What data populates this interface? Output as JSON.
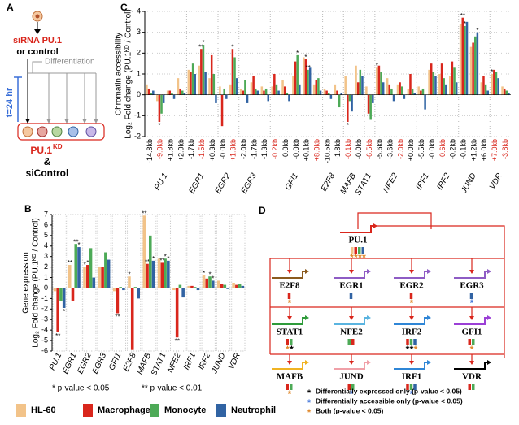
{
  "chart_data": [
    {
      "type": "bar",
      "panel": "C",
      "ylabel": [
        "Chromatin accessibility",
        "Log₂ Fold change (PU.1ᴷᴰ / Control)"
      ],
      "categories": [
        "-14.8kb",
        "-9.0kb",
        "+1.8kb",
        "+2.0kb",
        "-1.7kb",
        "-1.5kb",
        "+0.3kb",
        "-0.0kb",
        "+1.3kb",
        "-2.0kb",
        "-1.7kb",
        "-1.3kb",
        "-0.2kb",
        "-0.0kb",
        "-0.0kb",
        "+0.1kb",
        "+8.0kb",
        "-10.5kb",
        "-1.8kb",
        "-0.1kb",
        "-0.0kb",
        "-6.5kb",
        "-5.6kb",
        "-3.6kb",
        "-2.0kb",
        "+0.0kb",
        "-5.5kb",
        "-0.0kb",
        "-0.6kb",
        "-0.2kb",
        "-0.1kb",
        "+1.2kb",
        "+6.0kb",
        "+7.0kb",
        "-3.8kb"
      ],
      "category_label_colors": [
        "#000000",
        "#d9261c",
        "#000000",
        "#000000",
        "#000000",
        "#d9261c",
        "#000000",
        "#000000",
        "#d9261c",
        "#000000",
        "#000000",
        "#000000",
        "#d9261c",
        "#000000",
        "#000000",
        "#000000",
        "#d9261c",
        "#000000",
        "#000000",
        "#d9261c",
        "#000000",
        "#d9261c",
        "#000000",
        "#000000",
        "#d9261c",
        "#000000",
        "#000000",
        "#000000",
        "#d9261c",
        "#000000",
        "#000000",
        "#000000",
        "#000000",
        "#d9261c",
        "#d9261c"
      ],
      "category_groups": [
        "PU.1",
        "PU.1",
        "PU.1",
        "PU.1",
        "EGR1",
        "EGR1",
        "EGR1",
        "EGR2",
        "EGR2",
        "EGR3",
        "EGR3",
        "EGR3",
        "GFI1",
        "GFI1",
        "GFI1",
        "GFI1",
        "GFI1",
        "E2F8",
        "E2F8",
        "MAFB",
        "MAFB",
        "STAT1",
        "NFE2",
        "NFE2",
        "NFE2",
        "NFE2",
        "IRF1",
        "IRF1",
        "IRF2",
        "IRF2",
        "JUND",
        "JUND",
        "JUND",
        "VDR",
        "VDR"
      ],
      "series": [
        {
          "name": "HL-60",
          "color": "#f2c389",
          "values": [
            0.5,
            -0.3,
            0.2,
            0.8,
            1.2,
            1.4,
            0.8,
            0.4,
            0.5,
            0.3,
            0.6,
            0.4,
            0.4,
            0.7,
            0.9,
            1.8,
            0.5,
            0.3,
            0.5,
            0.9,
            1.4,
            0.4,
            1.3,
            0.8,
            0.5,
            0.3,
            0.4,
            1.2,
            1.0,
            0.9,
            3.4,
            2.3,
            0.6,
            1.0,
            0.4
          ],
          "stars": [
            null,
            null,
            null,
            null,
            null,
            null,
            null,
            null,
            null,
            null,
            null,
            null,
            null,
            null,
            null,
            null,
            null,
            null,
            null,
            null,
            null,
            null,
            "*",
            null,
            null,
            null,
            null,
            null,
            null,
            null,
            null,
            null,
            null,
            "*",
            null
          ]
        },
        {
          "name": "Macrophage",
          "color": "#d9261c",
          "values": [
            0.3,
            -1.3,
            0.2,
            0.3,
            1.1,
            2.2,
            1.9,
            -1.5,
            2.2,
            0.2,
            0.9,
            0.2,
            1.0,
            0.4,
            1.6,
            1.7,
            0.7,
            0.2,
            0.2,
            -1.3,
            0.6,
            -0.9,
            1.4,
            0.5,
            0.6,
            1.0,
            0.2,
            1.5,
            1.5,
            1.6,
            3.7,
            2.5,
            0.9,
            1.2,
            0.3
          ],
          "stars": [
            null,
            "*",
            null,
            null,
            null,
            "**",
            null,
            null,
            "*",
            null,
            null,
            null,
            null,
            null,
            null,
            "*",
            null,
            null,
            null,
            "*",
            null,
            null,
            null,
            null,
            null,
            null,
            null,
            null,
            null,
            null,
            "**",
            null,
            null,
            null,
            null
          ]
        },
        {
          "name": "Monocyte",
          "color": "#4daa57",
          "values": [
            0.1,
            -0.9,
            0.1,
            0.2,
            1.5,
            2.4,
            1.0,
            0.3,
            1.8,
            0.7,
            0.3,
            0.3,
            0.5,
            0.1,
            1.9,
            1.2,
            0.8,
            0.1,
            -0.6,
            -0.3,
            1.2,
            -1.2,
            1.1,
            0.3,
            0.4,
            0.3,
            0.3,
            1.1,
            0.8,
            1.3,
            3.3,
            2.8,
            0.5,
            1.1,
            0.2
          ],
          "stars": [
            null,
            null,
            null,
            null,
            null,
            "*",
            null,
            null,
            null,
            null,
            null,
            null,
            null,
            null,
            "*",
            "**",
            null,
            null,
            null,
            null,
            null,
            null,
            null,
            null,
            null,
            null,
            null,
            null,
            null,
            null,
            "*",
            null,
            null,
            null,
            null
          ]
        },
        {
          "name": "Neutrophil",
          "color": "#3163a3",
          "values": [
            0.2,
            -0.4,
            -0.2,
            0.1,
            1.0,
            1.1,
            -0.4,
            -0.2,
            0.8,
            -0.4,
            0.2,
            -0.3,
            0.2,
            -0.3,
            0.5,
            1.3,
            0.2,
            -0.2,
            0.1,
            -0.8,
            0.9,
            -0.4,
            0.6,
            -0.3,
            -0.2,
            0.1,
            -0.7,
            0.9,
            0.5,
            0.6,
            3.5,
            3.0,
            0.2,
            0.8,
            0.1
          ],
          "stars": [
            null,
            null,
            null,
            null,
            null,
            null,
            null,
            null,
            null,
            null,
            null,
            null,
            null,
            null,
            null,
            null,
            null,
            null,
            null,
            null,
            null,
            null,
            null,
            null,
            null,
            null,
            null,
            null,
            null,
            null,
            null,
            "*",
            null,
            null,
            null
          ]
        }
      ],
      "ylim": [
        -2,
        4
      ],
      "yticks": [
        -2,
        -1,
        0,
        1,
        2,
        3,
        4
      ],
      "grid": true,
      "legend": false
    },
    {
      "type": "bar",
      "panel": "B",
      "ylabel": [
        "Gene expression",
        "Log₂ Fold change (PU.1ᴷᴰ / Control)"
      ],
      "categories": [
        "PU.1",
        "EGR1",
        "EGR2",
        "EGR3",
        "GFI1",
        "E2F8",
        "MAFB",
        "STAT1",
        "NFE2",
        "IRF1",
        "IRF2",
        "JUND",
        "VDR"
      ],
      "series": [
        {
          "name": "HL-60",
          "color": "#f2c389",
          "values": [
            -0.3,
            2.2,
            2.0,
            2.0,
            -0.3,
            1.1,
            6.9,
            2.8,
            -0.2,
            0.2,
            1.2,
            0.7,
            0.5
          ],
          "stars": [
            null,
            "**",
            "*",
            null,
            null,
            "*",
            "**",
            null,
            null,
            null,
            "*",
            null,
            null
          ]
        },
        {
          "name": "Macrophage",
          "color": "#d9261c",
          "values": [
            -4.2,
            -1.2,
            2.2,
            2.0,
            -2.4,
            -5.9,
            2.3,
            2.4,
            -4.7,
            0.2,
            0.9,
            0.4,
            0.3
          ],
          "stars": [
            "**",
            null,
            "*",
            null,
            "**",
            null,
            "**",
            "**",
            "**",
            null,
            null,
            null,
            null
          ]
        },
        {
          "name": "Monocyte",
          "color": "#4daa57",
          "values": [
            -1.2,
            4.2,
            3.8,
            3.4,
            0.1,
            0.1,
            5.0,
            2.8,
            0.3,
            0.1,
            1.1,
            0.3,
            0.4
          ],
          "stars": [
            null,
            "**",
            null,
            null,
            null,
            null,
            null,
            "*",
            null,
            null,
            "*",
            null,
            null
          ]
        },
        {
          "name": "Neutrophil",
          "color": "#3163a3",
          "values": [
            -1.9,
            3.9,
            1.0,
            2.7,
            -0.2,
            -1.0,
            2.6,
            2.6,
            -0.9,
            -0.2,
            0.7,
            -0.1,
            0.2
          ],
          "stars": [
            "*",
            "*",
            null,
            null,
            null,
            null,
            "*",
            "*",
            null,
            null,
            "*",
            null,
            null
          ]
        }
      ],
      "ylim": [
        -6,
        7
      ],
      "yticks": [
        -6,
        -5,
        -4,
        -3,
        -2,
        -1,
        0,
        1,
        2,
        3,
        4,
        5,
        6,
        7
      ],
      "grid": false,
      "legend": "bottom",
      "footnote": [
        "* p-value < 0.05",
        "** p-value < 0.01"
      ]
    }
  ],
  "panel_a": {
    "label": "A",
    "treatment": "siRNA PU.1",
    "treatment_alt": "or control",
    "process": "Differentiation",
    "time": "t=24 hr",
    "result": "PU.1",
    "result_sup": "KD",
    "joiner": "&",
    "control": "siControl"
  },
  "panel_d": {
    "label": "D",
    "nodes": [
      {
        "name": "PU.1",
        "color": "#d9261c",
        "boxes": [
          "#f2c389",
          "#d9261c",
          "#4daa57",
          "#3163a3"
        ],
        "stars": [
          {
            "text": "*",
            "color": "#e0892c"
          },
          {
            "text": "*",
            "color": "#e0892c"
          },
          {
            "text": "*",
            "color": "#e0892c"
          },
          {
            "text": "*",
            "color": "#e0892c"
          }
        ]
      },
      {
        "name": "E2F8",
        "color": "#8a5a1e",
        "boxes": [
          "#d9261c"
        ],
        "stars": [
          {
            "text": "*",
            "color": "#e0892c"
          }
        ]
      },
      {
        "name": "EGR1",
        "color": "#8e5cc4",
        "boxes": [
          "#3163a3"
        ],
        "stars": []
      },
      {
        "name": "EGR2",
        "color": "#8e5cc4",
        "boxes": [
          "#d9261c"
        ],
        "stars": [
          {
            "text": "*",
            "color": "#e0892c"
          }
        ]
      },
      {
        "name": "EGR3",
        "color": "#8e5cc4",
        "boxes": [
          "#3163a3"
        ],
        "stars": [
          {
            "text": "*",
            "color": "#3a6fd8"
          }
        ]
      },
      {
        "name": "STAT1",
        "color": "#2e9b3a",
        "boxes": [
          "#d9261c",
          "#4daa57"
        ],
        "stars": [
          {
            "text": "*",
            "color": "#e0892c"
          },
          {
            "text": "*",
            "color": "#000000"
          }
        ]
      },
      {
        "name": "NFE2",
        "color": "#5ab4e0",
        "boxes": [
          "#4daa57",
          "#d9261c"
        ],
        "stars": []
      },
      {
        "name": "IRF2",
        "color": "#2f86d6",
        "boxes": [
          "#d9261c",
          "#4daa57",
          "#3163a3"
        ],
        "stars": [
          {
            "text": "*",
            "color": "#000000"
          },
          {
            "text": "*",
            "color": "#000000"
          },
          {
            "text": "*",
            "color": "#e0892c"
          }
        ]
      },
      {
        "name": "GFI1",
        "color": "#9b3fd6",
        "boxes": [
          "#d9261c",
          "#4daa57"
        ],
        "stars": [
          {
            "text": "*",
            "color": "#e0892c"
          }
        ]
      },
      {
        "name": "MAFB",
        "color": "#f0b323",
        "boxes": [
          "#d9261c",
          "#4daa57"
        ],
        "stars": [
          {
            "text": "*",
            "color": "#e0892c"
          }
        ]
      },
      {
        "name": "JUND",
        "color": "#f0a0a8",
        "boxes": [
          "#d9261c",
          "#4daa57"
        ],
        "stars": [
          {
            "text": "*",
            "color": "#3a6fd8"
          }
        ]
      },
      {
        "name": "IRF1",
        "color": "#2f86d6",
        "boxes": [
          "#d9261c",
          "#4daa57",
          "#3163a3"
        ],
        "stars": [
          {
            "text": "*",
            "color": "#3a6fd8"
          }
        ]
      },
      {
        "name": "VDR",
        "color": "#000000",
        "boxes": [
          "#d9261c",
          "#4daa57"
        ],
        "stars": []
      }
    ],
    "legend": [
      {
        "star": "*",
        "color": "#000000",
        "text": "Differentially expressed only (p-value < 0.05)"
      },
      {
        "star": "*",
        "color": "#3a6fd8",
        "text": "Differentially accessible only (p-value < 0.05)"
      },
      {
        "star": "*",
        "color": "#e0892c",
        "text": "Both (p-value < 0.05)"
      }
    ]
  }
}
